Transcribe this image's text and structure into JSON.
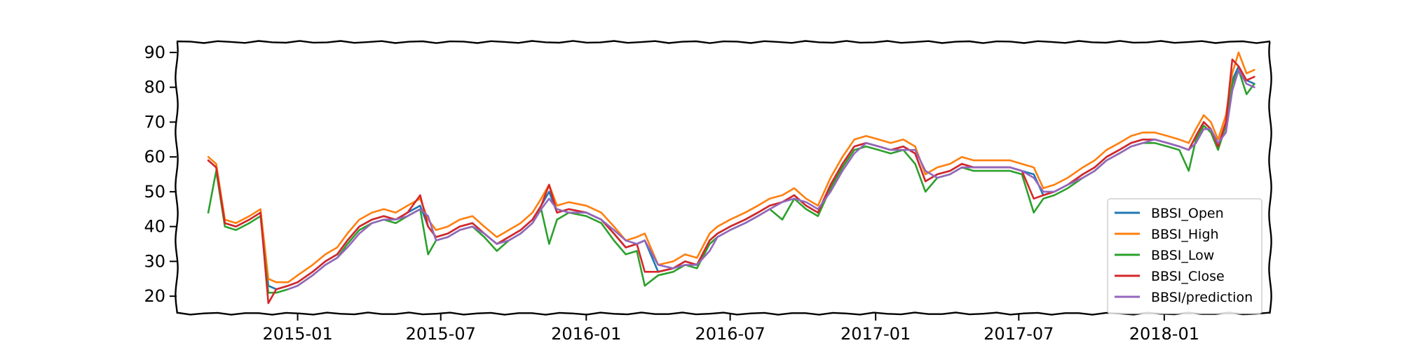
{
  "chart_data": {
    "type": "line",
    "title": "",
    "xlabel": "",
    "ylabel": "",
    "xlim": [
      "2014-08-01",
      "2018-05-15"
    ],
    "ylim": [
      15,
      93
    ],
    "x_ticks": [
      "2015-01",
      "2015-07",
      "2016-01",
      "2016-07",
      "2017-01",
      "2017-07",
      "2018-01"
    ],
    "y_ticks": [
      20,
      30,
      40,
      50,
      60,
      70,
      80,
      90
    ],
    "legend_position": "lower-right",
    "grid": false,
    "x": [
      "2014-09-10",
      "2014-09-20",
      "2014-10-01",
      "2014-10-15",
      "2014-11-01",
      "2014-11-15",
      "2014-11-25",
      "2014-12-05",
      "2014-12-20",
      "2015-01-01",
      "2015-01-20",
      "2015-02-05",
      "2015-02-20",
      "2015-03-05",
      "2015-03-20",
      "2015-04-05",
      "2015-04-20",
      "2015-05-05",
      "2015-05-20",
      "2015-06-05",
      "2015-06-15",
      "2015-06-25",
      "2015-07-10",
      "2015-07-25",
      "2015-08-10",
      "2015-08-25",
      "2015-09-10",
      "2015-09-25",
      "2015-10-10",
      "2015-10-25",
      "2015-11-05",
      "2015-11-15",
      "2015-11-25",
      "2015-12-10",
      "2016-01-01",
      "2016-01-20",
      "2016-02-05",
      "2016-02-20",
      "2016-03-05",
      "2016-03-15",
      "2016-04-01",
      "2016-04-20",
      "2016-05-05",
      "2016-05-20",
      "2016-06-05",
      "2016-06-15",
      "2016-07-01",
      "2016-07-20",
      "2016-08-05",
      "2016-08-20",
      "2016-09-05",
      "2016-09-20",
      "2016-10-05",
      "2016-10-20",
      "2016-11-05",
      "2016-11-20",
      "2016-12-05",
      "2016-12-20",
      "2017-01-05",
      "2017-01-20",
      "2017-02-05",
      "2017-02-20",
      "2017-03-05",
      "2017-03-20",
      "2017-04-05",
      "2017-04-20",
      "2017-05-05",
      "2017-05-20",
      "2017-06-05",
      "2017-06-20",
      "2017-07-05",
      "2017-07-20",
      "2017-08-01",
      "2017-08-15",
      "2017-09-01",
      "2017-09-20",
      "2017-10-05",
      "2017-10-20",
      "2017-11-05",
      "2017-11-20",
      "2017-12-05",
      "2017-12-20",
      "2018-01-05",
      "2018-01-20",
      "2018-02-01",
      "2018-02-10",
      "2018-02-20",
      "2018-03-01",
      "2018-03-10",
      "2018-03-20",
      "2018-03-28",
      "2018-04-05",
      "2018-04-15",
      "2018-04-25"
    ],
    "series": [
      {
        "name": "BBSI_Open",
        "color": "#1f77b4",
        "values": [
          59,
          57,
          41,
          40,
          42,
          44,
          23,
          22,
          23,
          24,
          27,
          30,
          32,
          36,
          40,
          42,
          43,
          42,
          44,
          46,
          40,
          37,
          38,
          40,
          41,
          38,
          35,
          37,
          39,
          42,
          46,
          50,
          44,
          45,
          44,
          42,
          38,
          34,
          35,
          36,
          27,
          28,
          30,
          29,
          36,
          38,
          40,
          42,
          44,
          46,
          47,
          49,
          46,
          44,
          52,
          58,
          63,
          64,
          63,
          62,
          63,
          61,
          53,
          55,
          56,
          58,
          57,
          57,
          57,
          57,
          56,
          55,
          49,
          50,
          52,
          55,
          57,
          60,
          62,
          64,
          65,
          65,
          64,
          63,
          62,
          66,
          70,
          68,
          63,
          70,
          82,
          86,
          82,
          81
        ]
      },
      {
        "name": "BBSI_High",
        "color": "#ff7f0e",
        "values": [
          60,
          58,
          42,
          41,
          43,
          45,
          25,
          24,
          24,
          26,
          29,
          32,
          34,
          38,
          42,
          44,
          45,
          44,
          46,
          48,
          42,
          39,
          40,
          42,
          43,
          40,
          37,
          39,
          41,
          44,
          48,
          52,
          46,
          47,
          46,
          44,
          40,
          36,
          37,
          38,
          29,
          30,
          32,
          31,
          38,
          40,
          42,
          44,
          46,
          48,
          49,
          51,
          48,
          46,
          54,
          60,
          65,
          66,
          65,
          64,
          65,
          63,
          55,
          57,
          58,
          60,
          59,
          59,
          59,
          59,
          58,
          57,
          51,
          52,
          54,
          57,
          59,
          62,
          64,
          66,
          67,
          67,
          66,
          65,
          64,
          68,
          72,
          70,
          65,
          72,
          84,
          90,
          84,
          85
        ]
      },
      {
        "name": "BBSI_Low",
        "color": "#2ca02c",
        "values": [
          44,
          56,
          40,
          39,
          41,
          43,
          21,
          21,
          22,
          23,
          26,
          29,
          31,
          35,
          39,
          41,
          42,
          41,
          43,
          45,
          32,
          36,
          37,
          39,
          40,
          37,
          33,
          36,
          38,
          41,
          45,
          35,
          42,
          44,
          43,
          41,
          36,
          32,
          33,
          23,
          26,
          27,
          29,
          28,
          35,
          37,
          39,
          41,
          43,
          45,
          42,
          48,
          45,
          43,
          51,
          57,
          62,
          63,
          62,
          61,
          62,
          58,
          50,
          54,
          55,
          57,
          56,
          56,
          56,
          56,
          55,
          44,
          48,
          49,
          51,
          54,
          56,
          59,
          61,
          63,
          64,
          64,
          63,
          62,
          56,
          65,
          69,
          67,
          62,
          69,
          81,
          85,
          78,
          81
        ]
      },
      {
        "name": "BBSI_Close",
        "color": "#d62728",
        "values": [
          59,
          57,
          41,
          40,
          42,
          44,
          18,
          22,
          23,
          24,
          27,
          30,
          32,
          36,
          40,
          42,
          43,
          42,
          44,
          49,
          40,
          37,
          38,
          40,
          41,
          38,
          35,
          37,
          39,
          42,
          46,
          52,
          44,
          45,
          44,
          42,
          38,
          34,
          35,
          27,
          27,
          28,
          30,
          29,
          36,
          38,
          40,
          42,
          44,
          46,
          47,
          49,
          46,
          44,
          52,
          58,
          63,
          64,
          63,
          62,
          63,
          61,
          53,
          55,
          56,
          58,
          57,
          57,
          57,
          57,
          56,
          48,
          49,
          50,
          52,
          55,
          57,
          60,
          62,
          64,
          65,
          65,
          64,
          63,
          62,
          66,
          70,
          68,
          63,
          70,
          88,
          86,
          82,
          83
        ]
      },
      {
        "name": "BBSI/prediction",
        "color": "#9467bd",
        "values": [
          null,
          null,
          null,
          null,
          null,
          null,
          null,
          null,
          22,
          23,
          26,
          29,
          31,
          34,
          38,
          41,
          42,
          42,
          43,
          45,
          43,
          36,
          37,
          39,
          40,
          38,
          35,
          36,
          38,
          41,
          45,
          48,
          45,
          44,
          44,
          42,
          39,
          36,
          35,
          36,
          29,
          28,
          29,
          29,
          33,
          37,
          39,
          41,
          43,
          45,
          47,
          48,
          47,
          45,
          50,
          56,
          61,
          64,
          63,
          62,
          62,
          62,
          56,
          54,
          55,
          57,
          57,
          57,
          57,
          57,
          56,
          54,
          50,
          50,
          52,
          54,
          56,
          59,
          61,
          63,
          64,
          65,
          64,
          63,
          62,
          64,
          68,
          68,
          64,
          67,
          79,
          85,
          81,
          80
        ]
      }
    ]
  }
}
